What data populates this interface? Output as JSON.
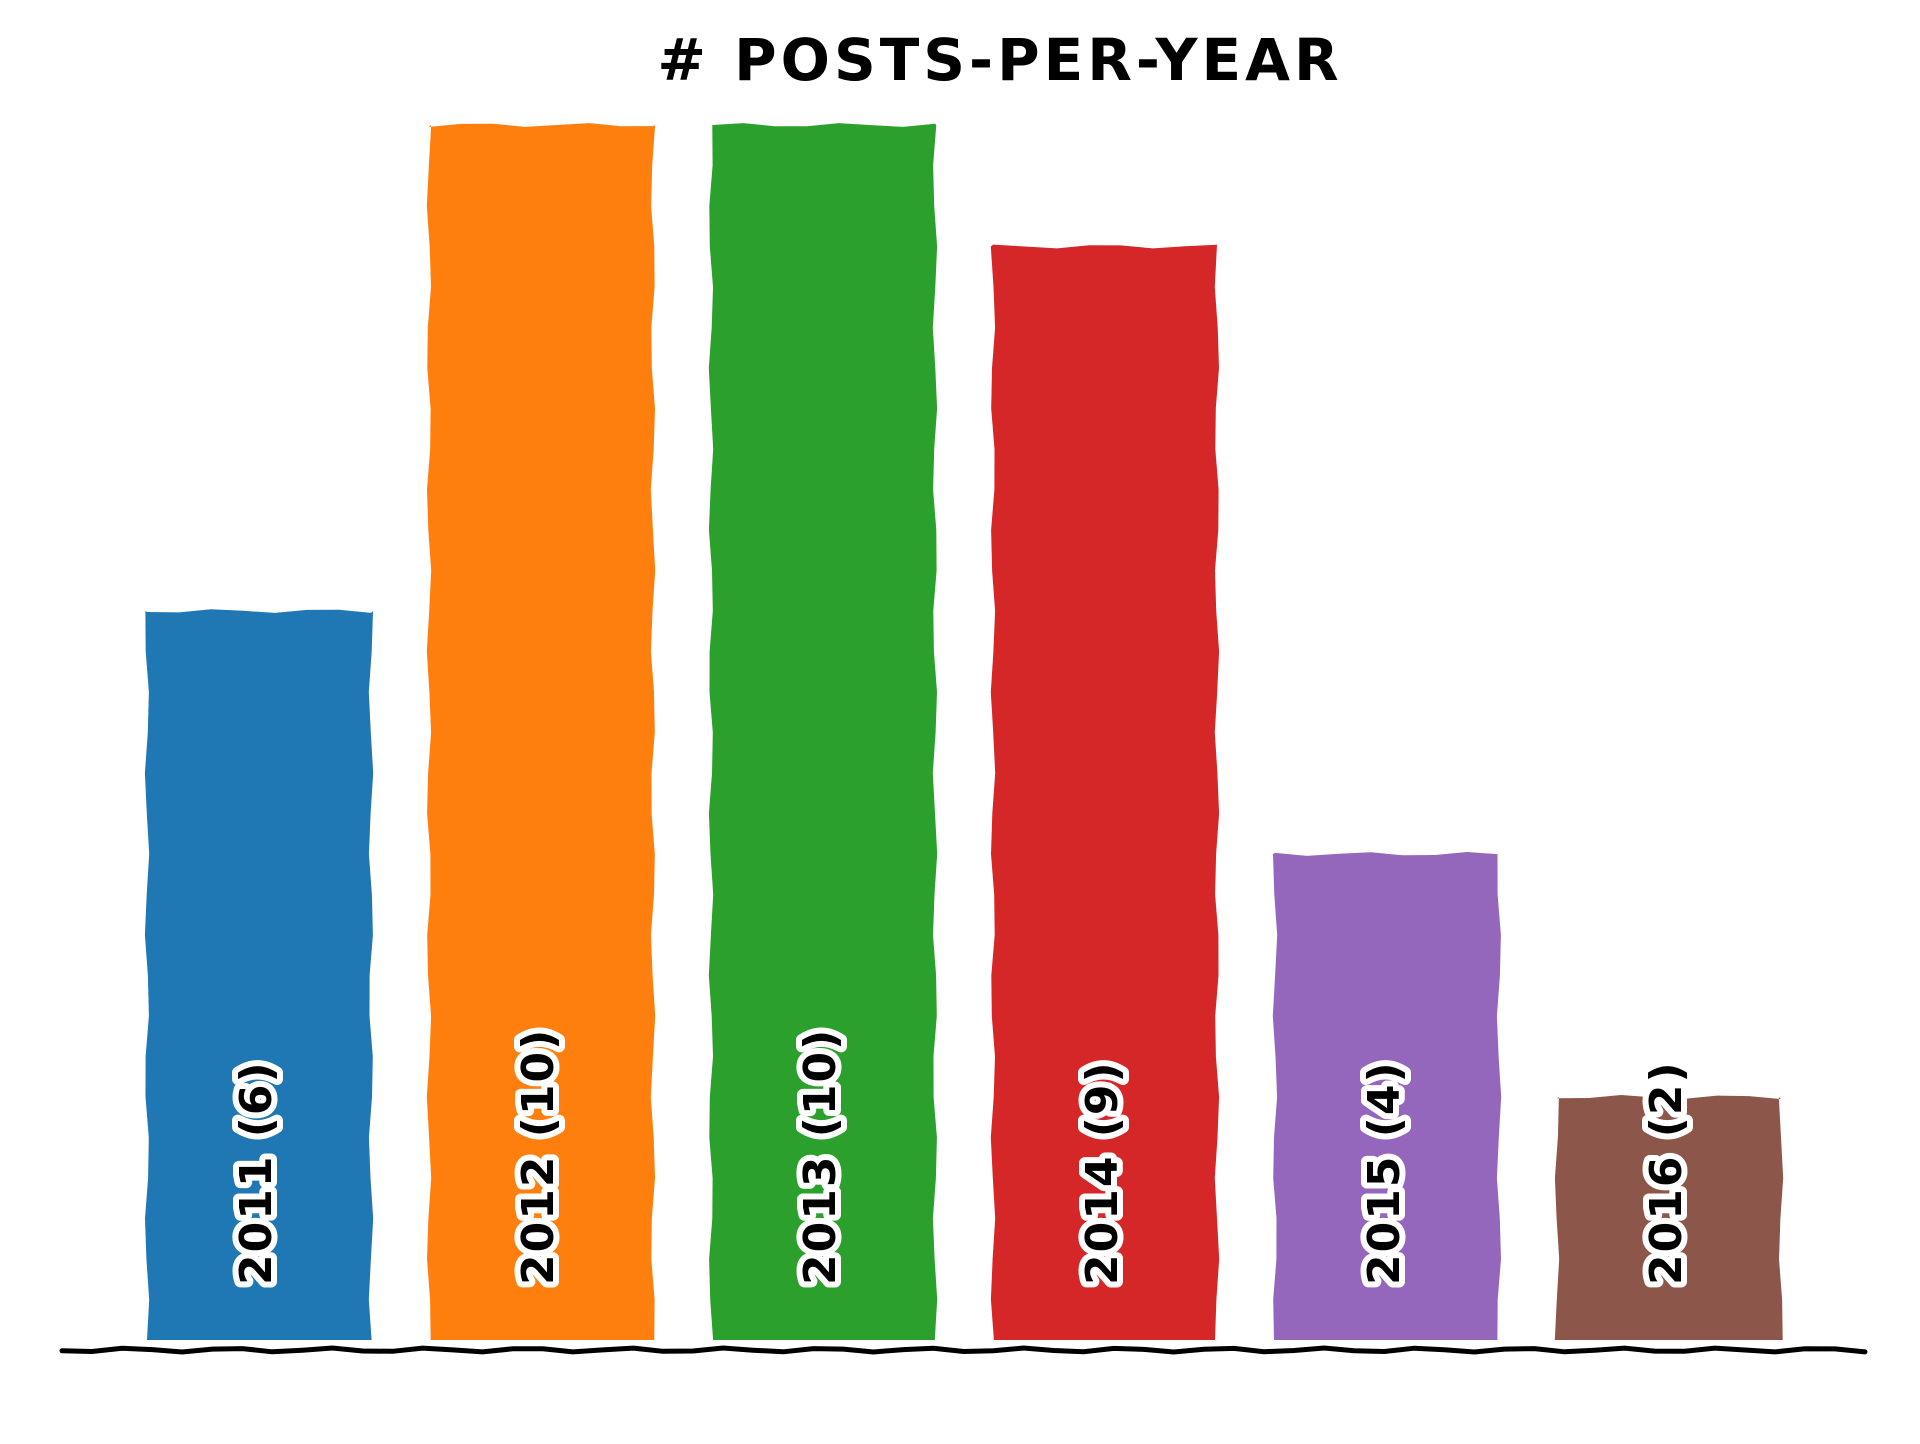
{
  "chart_data": {
    "type": "bar",
    "title": "# POSTS-PER-YEAR",
    "xlabel": "",
    "ylabel": "",
    "categories": [
      "2011",
      "2012",
      "2013",
      "2014",
      "2015",
      "2016"
    ],
    "values": [
      6,
      10,
      10,
      9,
      4,
      2
    ],
    "labels": [
      "2011 (6)",
      "2012 (10)",
      "2013 (10)",
      "2014 (9)",
      "2015 (4)",
      "2016 (2)"
    ],
    "colors": [
      "#1f77b4",
      "#ff7f0e",
      "#2ca02c",
      "#d62728",
      "#9467bd",
      "#8c564b"
    ],
    "ylim": [
      0,
      10
    ],
    "grid": false,
    "legend": "none"
  }
}
